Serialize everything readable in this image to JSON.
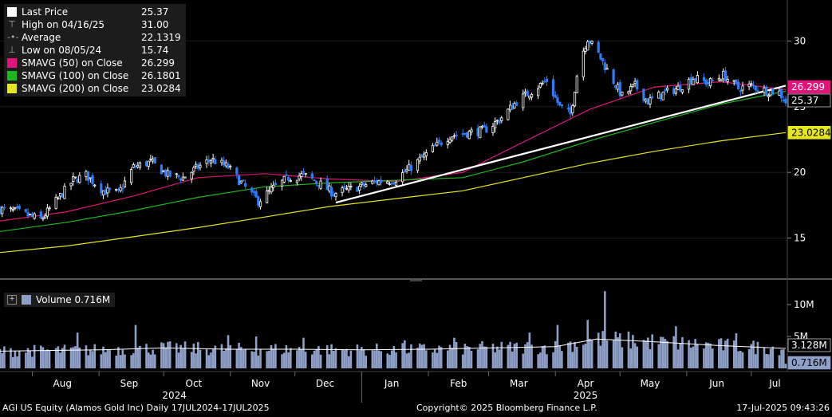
{
  "legend": {
    "rows": [
      {
        "label": "Last Price",
        "value": "25.37",
        "color": "#ffffff",
        "glyph": ""
      },
      {
        "label": "High on 04/16/25",
        "value": "31.00",
        "color": "",
        "glyph": "⊤"
      },
      {
        "label": "Average",
        "value": "22.1319",
        "color": "",
        "glyph": "-•-"
      },
      {
        "label": "Low on 08/05/24",
        "value": "15.74",
        "color": "",
        "glyph": "⊥"
      },
      {
        "label": "SMAVG (50)  on Close",
        "value": "26.299",
        "color": "#e0147a",
        "glyph": ""
      },
      {
        "label": "SMAVG (100)  on Close",
        "value": "26.1801",
        "color": "#1cb81c",
        "glyph": ""
      },
      {
        "label": "SMAVG (200)  on Close",
        "value": "23.0284",
        "color": "#e6e61e",
        "glyph": ""
      }
    ]
  },
  "volume_legend": {
    "label": "Volume",
    "value": "0.716M",
    "toggle": "+"
  },
  "footer": {
    "left": "AGI US Equity (Alamos Gold Inc)  Daily 17JUL2024-17JUL2025",
    "center": "Copyright© 2025 Bloomberg Finance L.P.",
    "right": "17-Jul-2025 09:43:26"
  },
  "colors": {
    "background": "#000000",
    "candle_up": "#ffffff",
    "candle_down": "#2f7df6",
    "sma50": "#e0147a",
    "sma100": "#1cb81c",
    "sma200": "#e6e61e",
    "trendline": "#ffffff",
    "volume_bar": "#8fa0c8",
    "volume_avg": "#ffffff"
  },
  "chart_data": [
    {
      "type": "candlestick",
      "title": "",
      "x_range": [
        "2024-07-17",
        "2025-07-17"
      ],
      "ylim": [
        12,
        33
      ],
      "y_ticks": [
        15,
        20,
        25,
        30
      ],
      "month_labels": [
        "Aug",
        "Sep",
        "Oct",
        "Nov",
        "Dec",
        "Jan",
        "Feb",
        "Mar",
        "Apr",
        "May",
        "Jun",
        "Jul"
      ],
      "month_dates": [
        "2024-08-15",
        "2024-09-15",
        "2024-10-15",
        "2024-11-15",
        "2024-12-15",
        "2025-01-15",
        "2025-02-15",
        "2025-03-15",
        "2025-04-15",
        "2025-05-15",
        "2025-06-15",
        "2025-07-12"
      ],
      "year_labels": [
        {
          "label": "2024",
          "date": "2024-10-06"
        },
        {
          "label": "2025",
          "date": "2025-04-15"
        }
      ],
      "close_path": [
        [
          "2024-07-17",
          17.2
        ],
        [
          "2024-07-25",
          17.0
        ],
        [
          "2024-08-05",
          16.4
        ],
        [
          "2024-08-12",
          17.8
        ],
        [
          "2024-08-20",
          19.4
        ],
        [
          "2024-08-26",
          19.8
        ],
        [
          "2024-09-03",
          18.6
        ],
        [
          "2024-09-10",
          18.4
        ],
        [
          "2024-09-17",
          20.4
        ],
        [
          "2024-09-25",
          20.8
        ],
        [
          "2024-10-03",
          19.8
        ],
        [
          "2024-10-10",
          19.6
        ],
        [
          "2024-10-17",
          20.4
        ],
        [
          "2024-10-23",
          21.0
        ],
        [
          "2024-10-31",
          20.4
        ],
        [
          "2024-11-06",
          19.2
        ],
        [
          "2024-11-14",
          17.8
        ],
        [
          "2024-11-21",
          18.8
        ],
        [
          "2024-11-28",
          19.6
        ],
        [
          "2024-12-05",
          19.8
        ],
        [
          "2024-12-12",
          19.2
        ],
        [
          "2024-12-19",
          18.4
        ],
        [
          "2024-12-31",
          18.9
        ],
        [
          "2025-01-08",
          19.3
        ],
        [
          "2025-01-16",
          19.4
        ],
        [
          "2025-01-24",
          20.4
        ],
        [
          "2025-02-03",
          21.8
        ],
        [
          "2025-02-11",
          22.8
        ],
        [
          "2025-02-19",
          23.0
        ],
        [
          "2025-02-27",
          23.2
        ],
        [
          "2025-03-06",
          24.0
        ],
        [
          "2025-03-14",
          25.4
        ],
        [
          "2025-03-21",
          26.2
        ],
        [
          "2025-03-28",
          27.0
        ],
        [
          "2025-04-03",
          25.0
        ],
        [
          "2025-04-08",
          24.4
        ],
        [
          "2025-04-12",
          28.4
        ],
        [
          "2025-04-16",
          30.2
        ],
        [
          "2025-04-21",
          29.0
        ],
        [
          "2025-04-25",
          27.8
        ],
        [
          "2025-05-02",
          25.8
        ],
        [
          "2025-05-08",
          26.6
        ],
        [
          "2025-05-14",
          25.4
        ],
        [
          "2025-05-21",
          26.0
        ],
        [
          "2025-05-28",
          26.4
        ],
        [
          "2025-06-04",
          27.2
        ],
        [
          "2025-06-11",
          26.8
        ],
        [
          "2025-06-18",
          27.4
        ],
        [
          "2025-06-25",
          26.4
        ],
        [
          "2025-07-01",
          26.6
        ],
        [
          "2025-07-08",
          26.2
        ],
        [
          "2025-07-14",
          26.1
        ],
        [
          "2025-07-17",
          25.37
        ]
      ],
      "sma_series": [
        {
          "name": "SMAVG (50)  on Close",
          "points": [
            [
              "2024-07-17",
              16.3
            ],
            [
              "2024-08-17",
              17.0
            ],
            [
              "2024-09-17",
              18.2
            ],
            [
              "2024-10-17",
              19.6
            ],
            [
              "2024-11-17",
              19.9
            ],
            [
              "2024-12-17",
              19.5
            ],
            [
              "2025-01-17",
              19.3
            ],
            [
              "2025-02-17",
              20.0
            ],
            [
              "2025-03-17",
              22.3
            ],
            [
              "2025-04-17",
              24.8
            ],
            [
              "2025-05-17",
              26.5
            ],
            [
              "2025-06-17",
              26.9
            ],
            [
              "2025-07-17",
              26.299
            ]
          ]
        },
        {
          "name": "SMAVG (100)  on Close",
          "points": [
            [
              "2024-07-17",
              15.5
            ],
            [
              "2024-08-17",
              16.2
            ],
            [
              "2024-09-17",
              17.1
            ],
            [
              "2024-10-17",
              18.1
            ],
            [
              "2024-11-17",
              18.9
            ],
            [
              "2024-12-17",
              19.2
            ],
            [
              "2025-01-17",
              19.4
            ],
            [
              "2025-02-17",
              19.6
            ],
            [
              "2025-03-17",
              20.8
            ],
            [
              "2025-04-17",
              22.4
            ],
            [
              "2025-05-17",
              23.8
            ],
            [
              "2025-06-17",
              25.2
            ],
            [
              "2025-07-17",
              26.1801
            ]
          ]
        },
        {
          "name": "SMAVG (200)  on Close",
          "points": [
            [
              "2024-07-17",
              13.9
            ],
            [
              "2024-08-17",
              14.4
            ],
            [
              "2024-09-17",
              15.1
            ],
            [
              "2024-10-17",
              15.8
            ],
            [
              "2024-11-17",
              16.6
            ],
            [
              "2024-12-17",
              17.4
            ],
            [
              "2025-01-17",
              18.0
            ],
            [
              "2025-02-17",
              18.6
            ],
            [
              "2025-03-17",
              19.6
            ],
            [
              "2025-04-17",
              20.7
            ],
            [
              "2025-05-17",
              21.6
            ],
            [
              "2025-06-17",
              22.4
            ],
            [
              "2025-07-17",
              23.0284
            ]
          ]
        }
      ],
      "trendline": [
        [
          "2024-12-20",
          17.7
        ],
        [
          "2025-07-17",
          26.6
        ]
      ],
      "price_labels": [
        {
          "value": 26.299,
          "text": "26.299",
          "color": "#e0147a",
          "text_color": "#ffffff"
        },
        {
          "value": 25.37,
          "text": "25.37",
          "color": "#000000",
          "text_color": "#ffffff"
        },
        {
          "value": 23.0284,
          "text": "23.0284",
          "color": "#e6e61e",
          "text_color": "#000000"
        }
      ]
    },
    {
      "type": "bar",
      "title": "",
      "series_name": "Volume",
      "ylim": [
        0,
        13
      ],
      "y_ticks": [
        {
          "value": 5,
          "label": "5M"
        },
        {
          "value": 10,
          "label": "10M"
        }
      ],
      "avg_path": [
        [
          "2024-07-17",
          2.7
        ],
        [
          "2024-09-01",
          2.9
        ],
        [
          "2024-10-01",
          3.2
        ],
        [
          "2024-11-01",
          3.0
        ],
        [
          "2024-12-01",
          3.0
        ],
        [
          "2025-01-01",
          2.9
        ],
        [
          "2025-02-01",
          3.0
        ],
        [
          "2025-03-01",
          3.2
        ],
        [
          "2025-04-01",
          3.4
        ],
        [
          "2025-04-20",
          4.6
        ],
        [
          "2025-05-15",
          4.2
        ],
        [
          "2025-06-15",
          3.6
        ],
        [
          "2025-07-17",
          3.128
        ]
      ],
      "spikes": [
        [
          "2024-08-22",
          5.6
        ],
        [
          "2024-09-18",
          6.8
        ],
        [
          "2024-10-31",
          5.2
        ],
        [
          "2024-11-13",
          5.0
        ],
        [
          "2024-12-05",
          4.8
        ],
        [
          "2025-01-21",
          4.4
        ],
        [
          "2025-02-13",
          4.8
        ],
        [
          "2025-03-20",
          5.6
        ],
        [
          "2025-04-02",
          6.8
        ],
        [
          "2025-04-16",
          7.6
        ],
        [
          "2025-04-24",
          12.1
        ],
        [
          "2025-05-27",
          6.6
        ],
        [
          "2025-06-24",
          5.5
        ]
      ],
      "price_labels": [
        {
          "value": 3.128,
          "text": "3.128M",
          "color": "#000000",
          "text_color": "#ffffff"
        },
        {
          "value": 0.716,
          "text": "0.716M",
          "color": "#8fa0c8",
          "text_color": "#000000"
        }
      ]
    }
  ]
}
